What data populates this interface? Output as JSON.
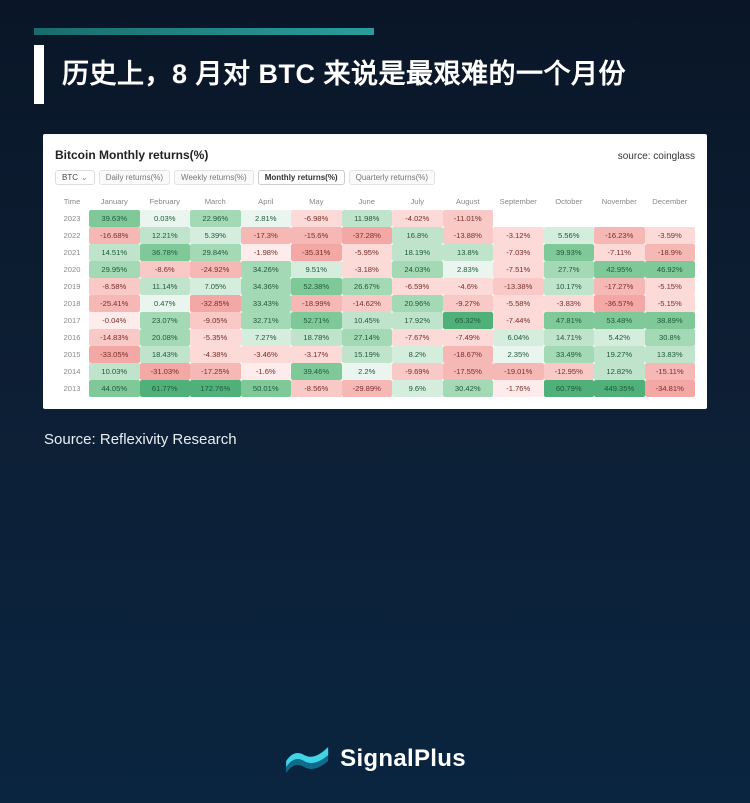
{
  "accent_gradient": [
    "#1a6b6b",
    "#2a9d9d"
  ],
  "title": "历史上，8 月对 BTC 来说是最艰难的一个月份",
  "panel": {
    "title": "Bitcoin Monthly returns(%)",
    "source_label": "source: coinglass",
    "coin": "BTC",
    "tabs": [
      "Daily returns(%)",
      "Weekly returns(%)",
      "Monthly returns(%)",
      "Quarterly returns(%)"
    ],
    "active_tab_index": 2,
    "columns": [
      "Time",
      "January",
      "February",
      "March",
      "April",
      "May",
      "June",
      "July",
      "August",
      "September",
      "October",
      "November",
      "December"
    ],
    "years": [
      "2023",
      "2022",
      "2021",
      "2020",
      "2019",
      "2018",
      "2017",
      "2016",
      "2015",
      "2014",
      "2013"
    ],
    "rows": [
      [
        "39.63%",
        "0.03%",
        "22.96%",
        "2.81%",
        "-6.98%",
        "11.98%",
        "-4.02%",
        "-11.01%",
        "",
        "",
        "",
        ""
      ],
      [
        "-16.68%",
        "12.21%",
        "5.39%",
        "-17.3%",
        "-15.6%",
        "-37.28%",
        "16.8%",
        "-13.88%",
        "-3.12%",
        "5.56%",
        "-16.23%",
        "-3.59%"
      ],
      [
        "14.51%",
        "36.78%",
        "29.84%",
        "-1.98%",
        "-35.31%",
        "-5.95%",
        "18.19%",
        "13.8%",
        "-7.03%",
        "39.93%",
        "-7.11%",
        "-18.9%"
      ],
      [
        "29.95%",
        "-8.6%",
        "-24.92%",
        "34.26%",
        "9.51%",
        "-3.18%",
        "24.03%",
        "2.83%",
        "-7.51%",
        "27.7%",
        "42.95%",
        "46.92%"
      ],
      [
        "-8.58%",
        "11.14%",
        "7.05%",
        "34.36%",
        "52.38%",
        "26.67%",
        "-6.59%",
        "-4.6%",
        "-13.38%",
        "10.17%",
        "-17.27%",
        "-5.15%"
      ],
      [
        "-25.41%",
        "0.47%",
        "-32.85%",
        "33.43%",
        "-18.99%",
        "-14.62%",
        "20.96%",
        "-9.27%",
        "-5.58%",
        "-3.83%",
        "-36.57%",
        "-5.15%"
      ],
      [
        "-0.04%",
        "23.07%",
        "-9.05%",
        "32.71%",
        "52.71%",
        "10.45%",
        "17.92%",
        "65.32%",
        "-7.44%",
        "47.81%",
        "53.48%",
        "38.89%"
      ],
      [
        "-14.83%",
        "20.08%",
        "-5.35%",
        "7.27%",
        "18.78%",
        "27.14%",
        "-7.67%",
        "-7.49%",
        "6.04%",
        "14.71%",
        "5.42%",
        "30.8%"
      ],
      [
        "-33.05%",
        "18.43%",
        "-4.38%",
        "-3.46%",
        "-3.17%",
        "15.19%",
        "8.2%",
        "-18.67%",
        "2.35%",
        "33.49%",
        "19.27%",
        "13.83%"
      ],
      [
        "10.03%",
        "-31.03%",
        "-17.25%",
        "-1.6%",
        "39.46%",
        "2.2%",
        "-9.69%",
        "-17.55%",
        "-19.01%",
        "-12.95%",
        "12.82%",
        "-15.11%"
      ],
      [
        "44.05%",
        "61.77%",
        "172.76%",
        "50.01%",
        "-8.56%",
        "-29.89%",
        "9.6%",
        "30.42%",
        "-1.76%",
        "60.79%",
        "449.35%",
        "-34.81%"
      ]
    ],
    "heat_colors": {
      "empty": "#ffffff",
      "neg5": "#f3a8a5",
      "neg4": "#f6b8b5",
      "neg3": "#f8c9c6",
      "neg2": "#fbdad7",
      "neg1": "#fdeceb",
      "pos1": "#e9f5ee",
      "pos2": "#d5eddd",
      "pos3": "#bfe4cb",
      "pos4": "#a4d9b5",
      "pos5": "#7fc999",
      "pos6": "#4fb179"
    },
    "text_colors": {
      "pos": "#1f5a3a",
      "neg": "#7a2e2a"
    }
  },
  "source_line": "Source: Reflexivity Research",
  "logo_text": "SignalPlus",
  "logo_colors": {
    "dark": "#0e6b8c",
    "light": "#3fd4e6"
  }
}
